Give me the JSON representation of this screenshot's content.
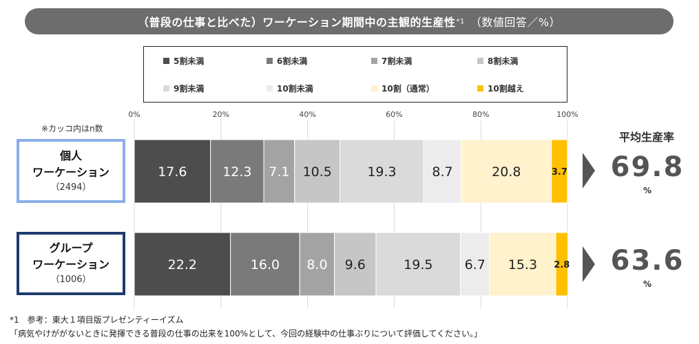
{
  "header": {
    "title": "（普段の仕事と比べた）ワーケーション期間中の主観的生産性",
    "title_sup": "*1",
    "title_unit": "（数値回答／%）"
  },
  "note_n": "※カッコ内はn数",
  "rows": [
    {
      "name": "個人",
      "name2": "ワーケーション",
      "n": "（2494）"
    },
    {
      "name": "グループ",
      "name2": "ワーケーション",
      "n": "（1006）"
    }
  ],
  "average": {
    "heading": "平均生産率",
    "values": [
      "69.8",
      "63.6"
    ],
    "unit": "%"
  },
  "footnotes": {
    "line1": "*1　参考：東大１項目版プレゼンティーイズム",
    "line2": "「病気やけががないときに発揮できる普段の仕事の出来を100%として、今回の経験中の仕事ぶりについて評価してください。」"
  },
  "chart_data": {
    "type": "bar",
    "orientation": "horizontal",
    "stacked": true,
    "categories": [
      "個人ワーケーション（2494）",
      "グループワーケーション（1006）"
    ],
    "x_ticks": [
      "0%",
      "20%",
      "40%",
      "60%",
      "80%",
      "100%"
    ],
    "xlim": [
      0,
      100
    ],
    "grid": true,
    "legend_position": "top",
    "series": [
      {
        "name": "5割未満",
        "color": "#4d4d4d",
        "label_color": "#ffffff",
        "values": [
          17.6,
          22.2
        ]
      },
      {
        "name": "6割未満",
        "color": "#7a7a7a",
        "label_color": "#ffffff",
        "values": [
          12.3,
          16.0
        ]
      },
      {
        "name": "7割未満",
        "color": "#a3a3a3",
        "label_color": "#ffffff",
        "values": [
          7.1,
          8.0
        ]
      },
      {
        "name": "8割未満",
        "color": "#c6c6c6",
        "label_color": "#222222",
        "values": [
          10.5,
          9.6
        ]
      },
      {
        "name": "9割未満",
        "color": "#dadada",
        "label_color": "#222222",
        "values": [
          19.3,
          19.5
        ]
      },
      {
        "name": "10割未満",
        "color": "#ececec",
        "label_color": "#222222",
        "values": [
          8.7,
          6.7
        ]
      },
      {
        "name": "10割（通常）",
        "color": "#fff2cc",
        "label_color": "#222222",
        "values": [
          20.8,
          15.3
        ]
      },
      {
        "name": "10割越え",
        "color": "#ffc000",
        "label_color": "#222222",
        "values": [
          3.7,
          2.8
        ]
      }
    ]
  }
}
